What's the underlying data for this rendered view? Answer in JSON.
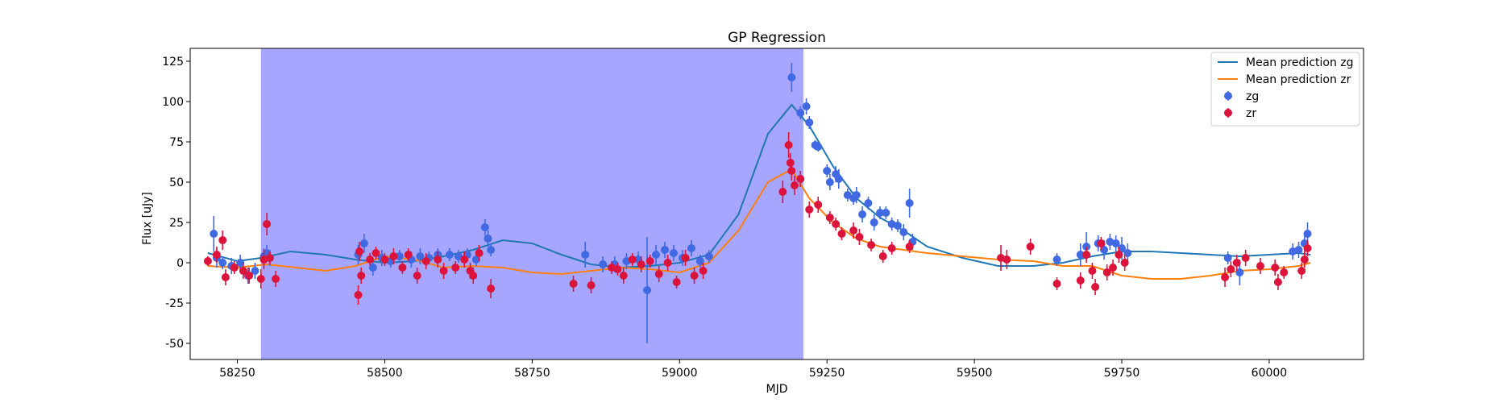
{
  "chart_data": {
    "type": "scatter",
    "title": "GP Regression",
    "xlabel": "MJD",
    "ylabel": "Flux [uJy]",
    "xlim": [
      58170,
      60160
    ],
    "ylim": [
      -60,
      133
    ],
    "xticks": [
      58250,
      58500,
      58750,
      59000,
      59250,
      59500,
      59750,
      60000
    ],
    "yticks": [
      -50,
      -25,
      0,
      25,
      50,
      75,
      100,
      125
    ],
    "grid": false,
    "legend_position": "top-right",
    "shaded_region": {
      "x_start": 58290,
      "x_end": 59210,
      "color": "#a6a6ff"
    },
    "series": [
      {
        "name": "Mean prediction zg",
        "kind": "line",
        "color": "#1f77b4",
        "x": [
          58200,
          58250,
          58290,
          58340,
          58400,
          58450,
          58500,
          58550,
          58600,
          58650,
          58700,
          58750,
          58800,
          58850,
          58900,
          58950,
          59000,
          59050,
          59100,
          59150,
          59190,
          59220,
          59260,
          59300,
          59340,
          59380,
          59420,
          59480,
          59540,
          59600,
          59650,
          59700,
          59750,
          59800,
          59850,
          59900,
          59950,
          60000,
          60050,
          60070
        ],
        "y": [
          6,
          1,
          3,
          7,
          5,
          2,
          0,
          1,
          4,
          8,
          14,
          12,
          5,
          -1,
          -3,
          -2,
          0,
          5,
          30,
          80,
          98,
          85,
          60,
          40,
          28,
          20,
          10,
          3,
          -2,
          -2,
          0,
          4,
          7,
          7,
          6,
          5,
          4,
          5,
          6,
          5
        ],
        "errors": []
      },
      {
        "name": "Mean prediction zr",
        "kind": "line",
        "color": "#ff7f0e",
        "x": [
          58200,
          58250,
          58300,
          58350,
          58400,
          58450,
          58500,
          58550,
          58600,
          58650,
          58700,
          58750,
          58800,
          58850,
          58900,
          58950,
          59000,
          59050,
          59100,
          59150,
          59190,
          59220,
          59260,
          59300,
          59340,
          59380,
          59420,
          59480,
          59540,
          59600,
          59650,
          59700,
          59750,
          59800,
          59850,
          59900,
          59950,
          60000,
          60050,
          60070
        ],
        "y": [
          -2,
          -3,
          -1,
          -3,
          -5,
          -2,
          4,
          2,
          -3,
          -2,
          -3,
          -6,
          -7,
          -5,
          -3,
          -4,
          -6,
          0,
          20,
          50,
          58,
          40,
          25,
          15,
          10,
          8,
          6,
          4,
          2,
          1,
          -2,
          -2,
          -8,
          -10,
          -10,
          -8,
          -5,
          -4,
          -2,
          0
        ],
        "errors": []
      },
      {
        "name": "zg",
        "kind": "points",
        "color": "#4169e1",
        "x": [
          58210,
          58215,
          58225,
          58240,
          58255,
          58268,
          58280,
          58295,
          58300,
          58305,
          58455,
          58465,
          58480,
          58495,
          58510,
          58525,
          58545,
          58560,
          58575,
          58590,
          58610,
          58625,
          58640,
          58655,
          58670,
          58675,
          58680,
          58840,
          58870,
          58890,
          58910,
          58930,
          58945,
          58960,
          58975,
          58990,
          59005,
          59020,
          59035,
          59050,
          59190,
          59205,
          59215,
          59220,
          59230,
          59235,
          59250,
          59255,
          59265,
          59270,
          59285,
          59295,
          59300,
          59310,
          59320,
          59330,
          59340,
          59350,
          59360,
          59370,
          59380,
          59390,
          59395,
          59640,
          59680,
          59690,
          59710,
          59720,
          59730,
          59740,
          59750,
          59760,
          59930,
          59950,
          60040,
          60050,
          60060,
          60065
        ],
        "y": [
          18,
          3,
          0,
          -2,
          0,
          -8,
          -5,
          4,
          6,
          3,
          5,
          12,
          -3,
          3,
          1,
          4,
          2,
          4,
          3,
          5,
          5,
          4,
          5,
          2,
          22,
          15,
          8,
          5,
          -1,
          -1,
          1,
          2,
          -17,
          5,
          8,
          6,
          3,
          9,
          1,
          4,
          115,
          93,
          97,
          87,
          73,
          72,
          57,
          50,
          55,
          52,
          42,
          40,
          42,
          30,
          37,
          25,
          31,
          31,
          24,
          23,
          19,
          37,
          13,
          2,
          5,
          10,
          12,
          8,
          13,
          12,
          9,
          6,
          3,
          -6,
          7,
          8,
          12,
          18
        ],
        "errors": [
          11,
          6,
          4,
          5,
          5,
          5,
          5,
          5,
          5,
          5,
          6,
          6,
          5,
          5,
          4,
          4,
          5,
          5,
          4,
          4,
          4,
          4,
          4,
          4,
          5,
          5,
          4,
          8,
          5,
          5,
          5,
          5,
          33,
          6,
          5,
          5,
          5,
          5,
          4,
          4,
          9,
          4,
          5,
          4,
          3,
          3,
          4,
          5,
          5,
          6,
          4,
          4,
          5,
          5,
          4,
          5,
          4,
          4,
          4,
          4,
          5,
          9,
          5,
          4,
          7,
          9,
          5,
          6,
          5,
          5,
          7,
          6,
          4,
          8,
          5,
          5,
          6,
          7
        ]
      },
      {
        "name": "zr",
        "kind": "points",
        "color": "#dc143c",
        "x": [
          58200,
          58215,
          58225,
          58230,
          58245,
          58260,
          58270,
          58290,
          58295,
          58300,
          58305,
          58315,
          58455,
          58457,
          58460,
          58475,
          58485,
          58500,
          58515,
          58530,
          58540,
          58555,
          58570,
          58590,
          58600,
          58620,
          58635,
          58645,
          58650,
          58660,
          58680,
          58820,
          58850,
          58885,
          58895,
          58905,
          58920,
          58935,
          58950,
          58965,
          58980,
          58995,
          59010,
          59025,
          59040,
          59175,
          59185,
          59188,
          59190,
          59195,
          59205,
          59220,
          59235,
          59255,
          59265,
          59275,
          59295,
          59305,
          59325,
          59345,
          59360,
          59390,
          59545,
          59555,
          59595,
          59640,
          59680,
          59690,
          59700,
          59705,
          59715,
          59725,
          59735,
          59745,
          59755,
          59925,
          59935,
          59945,
          59960,
          59985,
          60010,
          60015,
          60025,
          60055,
          60060,
          60065
        ],
        "y": [
          1,
          5,
          14,
          -9,
          -3,
          -5,
          -8,
          -10,
          2,
          24,
          3,
          -10,
          -20,
          7,
          -8,
          2,
          6,
          2,
          4,
          -3,
          5,
          -8,
          1,
          2,
          -5,
          -3,
          2,
          -5,
          -8,
          6,
          -16,
          -13,
          -14,
          -3,
          -4,
          -8,
          2,
          -1,
          1,
          -7,
          0,
          -12,
          3,
          -8,
          -5,
          44,
          73,
          62,
          57,
          48,
          52,
          33,
          36,
          28,
          24,
          18,
          20,
          16,
          11,
          4,
          9,
          10,
          3,
          2,
          10,
          -13,
          -11,
          5,
          -5,
          -15,
          12,
          -6,
          -3,
          5,
          0,
          -9,
          -4,
          0,
          3,
          -2,
          -3,
          -12,
          -6,
          -5,
          2,
          9
        ],
        "errors": [
          3,
          5,
          6,
          5,
          4,
          5,
          5,
          6,
          6,
          7,
          4,
          5,
          6,
          6,
          5,
          4,
          4,
          4,
          5,
          4,
          4,
          5,
          5,
          5,
          5,
          4,
          5,
          5,
          5,
          5,
          6,
          5,
          5,
          4,
          4,
          5,
          4,
          5,
          4,
          5,
          5,
          4,
          5,
          5,
          5,
          7,
          8,
          6,
          6,
          6,
          5,
          5,
          5,
          4,
          4,
          4,
          5,
          5,
          4,
          4,
          4,
          4,
          8,
          6,
          5,
          4,
          5,
          5,
          5,
          5,
          4,
          5,
          5,
          5,
          5,
          6,
          5,
          5,
          5,
          5,
          5,
          5,
          4,
          5,
          5,
          5
        ]
      }
    ]
  }
}
